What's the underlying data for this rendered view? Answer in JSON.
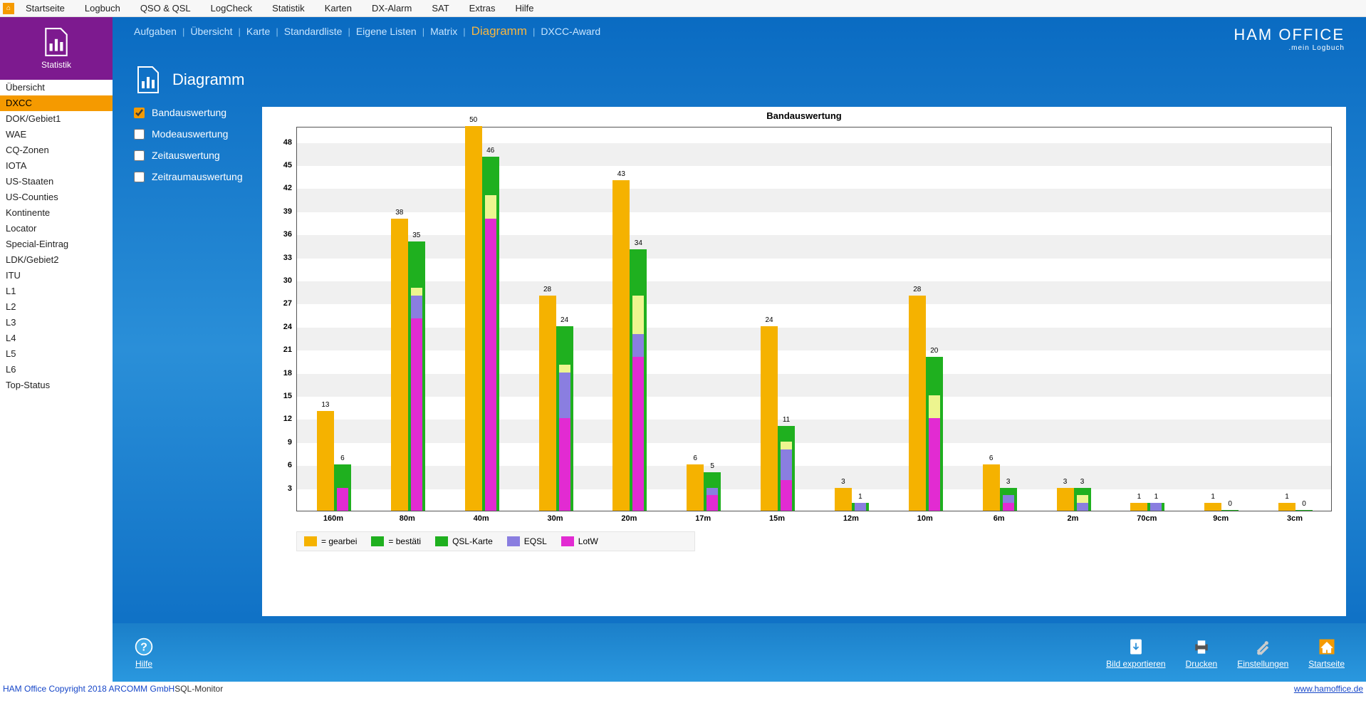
{
  "topmenu": [
    "Startseite",
    "Logbuch",
    "QSO & QSL",
    "LogCheck",
    "Statistik",
    "Karten",
    "DX-Alarm",
    "SAT",
    "Extras",
    "Hilfe"
  ],
  "leftbox_caption": "Statistik",
  "sidebar": [
    "Übersicht",
    "DXCC",
    "DOK/Gebiet1",
    "WAE",
    "CQ-Zonen",
    "IOTA",
    "US-Staaten",
    "US-Counties",
    "Kontinente",
    "Locator",
    "Special-Eintrag",
    "LDK/Gebiet2",
    "ITU",
    "L1",
    "L2",
    "L3",
    "L4",
    "L5",
    "L6",
    "Top-Status"
  ],
  "sidebar_active": "DXCC",
  "subnav": [
    {
      "label": "Aufgaben",
      "active": false
    },
    {
      "label": "Übersicht",
      "active": false
    },
    {
      "label": "Karte",
      "active": false
    },
    {
      "label": "Standardliste",
      "active": false
    },
    {
      "label": "Eigene Listen",
      "active": false
    },
    {
      "label": "Matrix",
      "active": false
    },
    {
      "label": "Diagramm",
      "active": true
    },
    {
      "label": "DXCC-Award",
      "active": false
    }
  ],
  "brand_line1": "HAM OFFICE",
  "brand_line2": ".mein Logbuch",
  "page_title": "Diagramm",
  "checks": [
    {
      "label": "Bandauswertung",
      "checked": true
    },
    {
      "label": "Modeauswertung",
      "checked": false
    },
    {
      "label": "Zeitauswertung",
      "checked": false
    },
    {
      "label": "Zeitraumauswertung",
      "checked": false
    }
  ],
  "chart": {
    "title": "Bandauswertung",
    "type": "bar",
    "ymax": 50,
    "yticks": [
      3,
      6,
      9,
      12,
      15,
      18,
      21,
      24,
      27,
      30,
      33,
      36,
      39,
      42,
      45,
      48
    ],
    "categories": [
      "160m",
      "80m",
      "40m",
      "30m",
      "20m",
      "17m",
      "15m",
      "12m",
      "10m",
      "6m",
      "2m",
      "70cm",
      "9cm",
      "3cm"
    ],
    "series": [
      {
        "name": "= gearbei",
        "color": "#f5b200"
      },
      {
        "name": "= bestäti",
        "color": "#1fb01f"
      },
      {
        "name": "QSL-Karte",
        "color": "#1fb01f"
      },
      {
        "name": "EQSL",
        "color": "#8a7ee0"
      },
      {
        "name": "LotW",
        "color": "#e22bd2"
      }
    ],
    "groups": [
      {
        "bars": [
          {
            "v": 13,
            "c": "#f5b200",
            "label": "13"
          },
          {
            "v": 6,
            "c": "#1fb01f",
            "label": "6",
            "inner": [
              {
                "v": 3,
                "c": "#edf58f"
              },
              {
                "v": 3,
                "c": "#8a7ee0"
              },
              {
                "v": 3,
                "c": "#e22bd2"
              }
            ]
          }
        ]
      },
      {
        "bars": [
          {
            "v": 38,
            "c": "#f5b200",
            "label": "38"
          },
          {
            "v": 35,
            "c": "#1fb01f",
            "label": "35",
            "inner": [
              {
                "v": 29,
                "c": "#edf58f"
              },
              {
                "v": 28,
                "c": "#8a7ee0"
              },
              {
                "v": 25,
                "c": "#e22bd2"
              }
            ]
          }
        ]
      },
      {
        "bars": [
          {
            "v": 50,
            "c": "#f5b200",
            "label": "50"
          },
          {
            "v": 46,
            "c": "#1fb01f",
            "label": "46",
            "inner": [
              {
                "v": 41,
                "c": "#edf58f"
              },
              {
                "v": 38,
                "c": "#8a7ee0"
              },
              {
                "v": 38,
                "c": "#e22bd2"
              }
            ]
          }
        ]
      },
      {
        "bars": [
          {
            "v": 28,
            "c": "#f5b200",
            "label": "28"
          },
          {
            "v": 24,
            "c": "#1fb01f",
            "label": "24",
            "inner": [
              {
                "v": 19,
                "c": "#edf58f"
              },
              {
                "v": 18,
                "c": "#8a7ee0"
              },
              {
                "v": 12,
                "c": "#e22bd2"
              }
            ]
          }
        ]
      },
      {
        "bars": [
          {
            "v": 43,
            "c": "#f5b200",
            "label": "43"
          },
          {
            "v": 34,
            "c": "#1fb01f",
            "label": "34",
            "inner": [
              {
                "v": 28,
                "c": "#edf58f"
              },
              {
                "v": 23,
                "c": "#8a7ee0"
              },
              {
                "v": 20,
                "c": "#e22bd2"
              }
            ]
          }
        ]
      },
      {
        "bars": [
          {
            "v": 6,
            "c": "#f5b200",
            "label": "6"
          },
          {
            "v": 5,
            "c": "#1fb01f",
            "label": "5",
            "inner": [
              {
                "v": 3,
                "c": "#edf58f"
              },
              {
                "v": 3,
                "c": "#8a7ee0"
              },
              {
                "v": 2,
                "c": "#e22bd2"
              }
            ]
          }
        ]
      },
      {
        "bars": [
          {
            "v": 24,
            "c": "#f5b200",
            "label": "24"
          },
          {
            "v": 11,
            "c": "#1fb01f",
            "label": "11",
            "inner": [
              {
                "v": 9,
                "c": "#edf58f"
              },
              {
                "v": 8,
                "c": "#8a7ee0"
              },
              {
                "v": 4,
                "c": "#e22bd2"
              }
            ]
          }
        ]
      },
      {
        "bars": [
          {
            "v": 3,
            "c": "#f5b200",
            "label": "3"
          },
          {
            "v": 1,
            "c": "#1fb01f",
            "label": "1",
            "inner": [
              {
                "v": 1,
                "c": "#8a7ee0"
              }
            ]
          }
        ]
      },
      {
        "bars": [
          {
            "v": 28,
            "c": "#f5b200",
            "label": "28"
          },
          {
            "v": 20,
            "c": "#1fb01f",
            "label": "20",
            "inner": [
              {
                "v": 15,
                "c": "#edf58f"
              },
              {
                "v": 12,
                "c": "#8a7ee0"
              },
              {
                "v": 12,
                "c": "#e22bd2"
              }
            ]
          }
        ]
      },
      {
        "bars": [
          {
            "v": 6,
            "c": "#f5b200",
            "label": "6"
          },
          {
            "v": 3,
            "c": "#1fb01f",
            "label": "3",
            "inner": [
              {
                "v": 2,
                "c": "#edf58f"
              },
              {
                "v": 2,
                "c": "#8a7ee0"
              },
              {
                "v": 1,
                "c": "#e22bd2"
              }
            ]
          }
        ]
      },
      {
        "bars": [
          {
            "v": 3,
            "c": "#f5b200",
            "label": "3"
          },
          {
            "v": 3,
            "c": "#1fb01f",
            "label": "3",
            "inner": [
              {
                "v": 2,
                "c": "#edf58f"
              },
              {
                "v": 1,
                "c": "#8a7ee0"
              }
            ]
          }
        ]
      },
      {
        "bars": [
          {
            "v": 1,
            "c": "#f5b200",
            "label": "1"
          },
          {
            "v": 1,
            "c": "#1fb01f",
            "label": "1",
            "inner": [
              {
                "v": 1,
                "c": "#8a7ee0"
              }
            ]
          }
        ]
      },
      {
        "bars": [
          {
            "v": 1,
            "c": "#f5b200",
            "label": "1"
          },
          {
            "v": 0,
            "c": "#1fb01f",
            "label": "0"
          }
        ]
      },
      {
        "bars": [
          {
            "v": 1,
            "c": "#f5b200",
            "label": "1"
          },
          {
            "v": 0,
            "c": "#1fb01f",
            "label": "0"
          }
        ]
      }
    ],
    "grid_color": "#f0f0f0",
    "axis_font_size": 11
  },
  "footer": {
    "left": [
      {
        "label": "Hilfe",
        "icon": "help"
      }
    ],
    "right": [
      {
        "label": "Bild exportieren",
        "icon": "export"
      },
      {
        "label": "Drucken",
        "icon": "print"
      },
      {
        "label": "Einstellungen",
        "icon": "settings"
      },
      {
        "label": "Startseite",
        "icon": "home"
      }
    ]
  },
  "status": {
    "left": "HAM Office Copyright 2018 ARCOMM GmbH",
    "mid": "SQL-Monitor",
    "right": "www.hamoffice.de"
  }
}
